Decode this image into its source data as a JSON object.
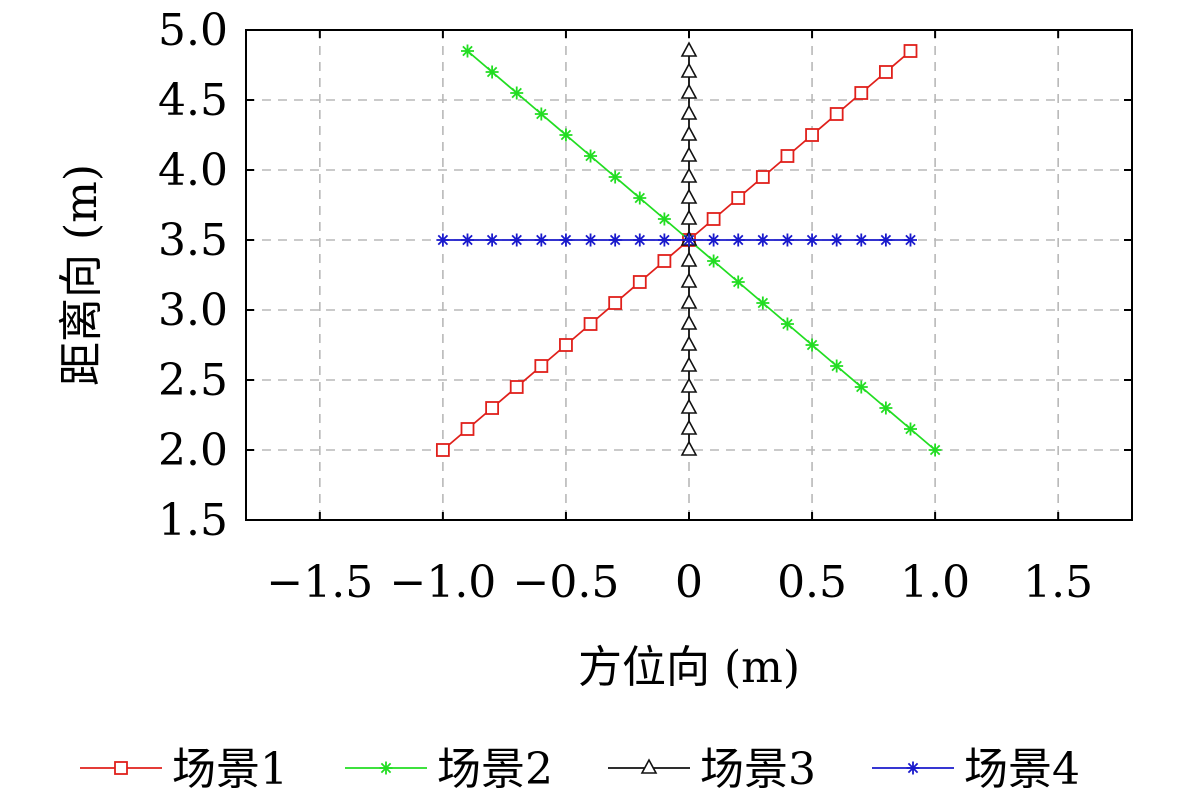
{
  "chart_data": {
    "type": "line",
    "title": "",
    "xlabel": "方位向 (m)",
    "ylabel": "距离向 (m)",
    "xlim": [
      -1.8,
      1.8
    ],
    "ylim": [
      1.5,
      5.0
    ],
    "xticks": [
      -1.5,
      -1.0,
      -0.5,
      0,
      0.5,
      1.0,
      1.5
    ],
    "xtick_labels": [
      "−1.5",
      "−1.0",
      "−0.5",
      "0",
      "0.5",
      "1.0",
      "1.5"
    ],
    "yticks": [
      1.5,
      2.0,
      2.5,
      3.0,
      3.5,
      4.0,
      4.5,
      5.0
    ],
    "ytick_labels": [
      "1.5",
      "2.0",
      "2.5",
      "3.0",
      "3.5",
      "4.0",
      "4.5",
      "5.0"
    ],
    "grid": true,
    "legend_position": "bottom",
    "series": [
      {
        "name": "场景1",
        "color": "#e0201b",
        "marker": "square",
        "x": [
          -1.0,
          -0.9,
          -0.8,
          -0.7,
          -0.6,
          -0.5,
          -0.4,
          -0.3,
          -0.2,
          -0.1,
          0.0,
          0.1,
          0.2,
          0.3,
          0.4,
          0.5,
          0.6,
          0.7,
          0.8,
          0.9
        ],
        "y": [
          2.0,
          2.15,
          2.3,
          2.45,
          2.6,
          2.75,
          2.9,
          3.05,
          3.2,
          3.35,
          3.5,
          3.65,
          3.8,
          3.95,
          4.1,
          4.25,
          4.4,
          4.55,
          4.7,
          4.85
        ]
      },
      {
        "name": "场景2",
        "color": "#22dd22",
        "marker": "asterisk",
        "x": [
          -0.9,
          -0.8,
          -0.7,
          -0.6,
          -0.5,
          -0.4,
          -0.3,
          -0.2,
          -0.1,
          0.0,
          0.1,
          0.2,
          0.3,
          0.4,
          0.5,
          0.6,
          0.7,
          0.8,
          0.9,
          1.0
        ],
        "y": [
          4.85,
          4.7,
          4.55,
          4.4,
          4.25,
          4.1,
          3.95,
          3.8,
          3.65,
          3.5,
          3.35,
          3.2,
          3.05,
          2.9,
          2.75,
          2.6,
          2.45,
          2.3,
          2.15,
          2.0
        ]
      },
      {
        "name": "场景3",
        "color": "#111111",
        "marker": "triangle",
        "x": [
          0,
          0,
          0,
          0,
          0,
          0,
          0,
          0,
          0,
          0,
          0,
          0,
          0,
          0,
          0,
          0,
          0,
          0,
          0,
          0
        ],
        "y": [
          2.0,
          2.15,
          2.3,
          2.45,
          2.6,
          2.75,
          2.9,
          3.05,
          3.2,
          3.35,
          3.5,
          3.65,
          3.8,
          3.95,
          4.1,
          4.25,
          4.4,
          4.55,
          4.7,
          4.85
        ]
      },
      {
        "name": "场景4",
        "color": "#1a1acc",
        "marker": "asterisk",
        "x": [
          -1.0,
          -0.9,
          -0.8,
          -0.7,
          -0.6,
          -0.5,
          -0.4,
          -0.3,
          -0.2,
          -0.1,
          0.0,
          0.1,
          0.2,
          0.3,
          0.4,
          0.5,
          0.6,
          0.7,
          0.8,
          0.9
        ],
        "y": [
          3.5,
          3.5,
          3.5,
          3.5,
          3.5,
          3.5,
          3.5,
          3.5,
          3.5,
          3.5,
          3.5,
          3.5,
          3.5,
          3.5,
          3.5,
          3.5,
          3.5,
          3.5,
          3.5,
          3.5
        ]
      }
    ]
  }
}
